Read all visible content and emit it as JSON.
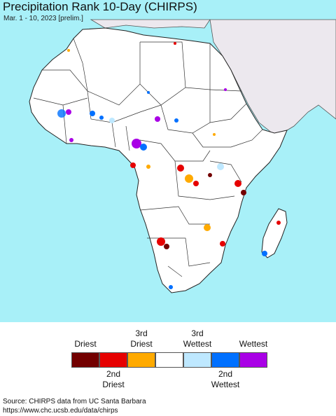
{
  "header": {
    "title": "Precipitation Rank 10-Day (CHIRPS)",
    "subtitle": "Mar. 1 - 10, 2023 [prelim.]"
  },
  "map": {
    "ocean_color": "#a8f0f8",
    "land_color": "#ffffff",
    "other_land_color": "#ece8ee",
    "border_color": "#333333"
  },
  "legend": {
    "items": [
      {
        "color": "#730000",
        "top_label": "Driest",
        "bottom_label": ""
      },
      {
        "color": "#e60000",
        "top_label": "",
        "bottom_label": "2nd\nDriest"
      },
      {
        "color": "#ffaa00",
        "top_label": "3rd\nDriest",
        "bottom_label": ""
      },
      {
        "color": "#ffffff",
        "top_label": "",
        "bottom_label": ""
      },
      {
        "color": "#bee8ff",
        "top_label": "3rd\nWettest",
        "bottom_label": ""
      },
      {
        "color": "#0070ff",
        "top_label": "",
        "bottom_label": "2nd\nWettest"
      },
      {
        "color": "#a900e6",
        "top_label": "Wettest",
        "bottom_label": ""
      }
    ]
  },
  "footer": {
    "source_line1": "Source: CHIRPS data from UC Santa Barbara",
    "source_line2": "https://www.chc.ucsb.edu/data/chirps"
  }
}
